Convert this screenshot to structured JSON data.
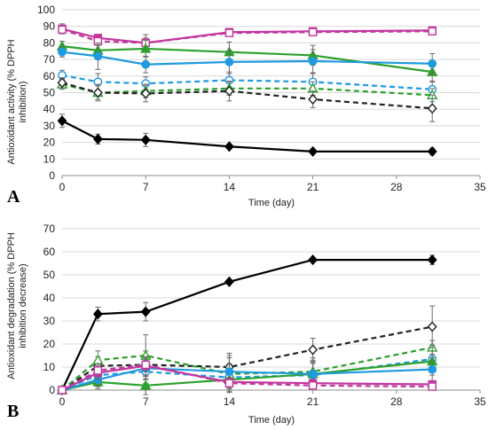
{
  "chart_data": [
    {
      "panel_label": "A",
      "type": "line",
      "xlabel": "Time (day)",
      "ylabel_lines": [
        "Antioxidant activity (% DPPH",
        "inhibition)"
      ],
      "xlim": [
        0,
        35
      ],
      "ylim": [
        0,
        100
      ],
      "x_ticks": [
        0,
        7,
        14,
        21,
        28,
        35
      ],
      "y_ticks": [
        0,
        10,
        20,
        30,
        40,
        50,
        60,
        70,
        80,
        90,
        100
      ],
      "grid": "horizontal",
      "series": [
        {
          "color": "#c2379e",
          "dash": "solid",
          "marker": "square",
          "filled": true,
          "x": [
            0,
            3,
            7,
            14,
            21,
            31
          ],
          "y": [
            88.5,
            83,
            80,
            86.5,
            87,
            87.5
          ],
          "err": [
            3,
            2,
            5,
            2,
            1,
            1
          ]
        },
        {
          "color": "#c2379e",
          "dash": "dashed",
          "marker": "square",
          "filled": false,
          "x": [
            0,
            3,
            7,
            14,
            21,
            31
          ],
          "y": [
            88,
            81,
            80,
            86,
            86.5,
            87
          ],
          "err": [
            2,
            2,
            3,
            1,
            1,
            1
          ]
        },
        {
          "color": "#2ca02c",
          "dash": "solid",
          "marker": "triangle",
          "filled": true,
          "x": [
            0,
            3,
            7,
            14,
            21,
            31
          ],
          "y": [
            78,
            75.5,
            76.5,
            74.5,
            72.5,
            62.5
          ],
          "err": [
            3,
            3,
            5,
            6,
            6,
            6
          ]
        },
        {
          "color": "#1f9ae0",
          "dash": "solid",
          "marker": "circle",
          "filled": true,
          "x": [
            0,
            3,
            7,
            14,
            21,
            31
          ],
          "y": [
            74.5,
            72,
            67,
            68.5,
            69,
            67.5
          ],
          "err": [
            3,
            8,
            5,
            7,
            7,
            6
          ]
        },
        {
          "color": "#1f9ae0",
          "dash": "dashed",
          "marker": "circle",
          "filled": false,
          "x": [
            0,
            3,
            7,
            14,
            21,
            31
          ],
          "y": [
            60.5,
            56.5,
            55.5,
            57.5,
            56.5,
            52
          ],
          "err": [
            3,
            5,
            4,
            5,
            5,
            5
          ]
        },
        {
          "color": "#2ca02c",
          "dash": "dashed",
          "marker": "triangle",
          "filled": false,
          "x": [
            0,
            3,
            7,
            14,
            21,
            31
          ],
          "y": [
            55,
            50,
            51,
            52.5,
            52.5,
            48.5
          ],
          "err": [
            3,
            4,
            4,
            4,
            4,
            4
          ]
        },
        {
          "color": "#222222",
          "dash": "dashed",
          "marker": "diamond",
          "filled": false,
          "x": [
            0,
            3,
            7,
            14,
            21,
            31
          ],
          "y": [
            56,
            50,
            49.5,
            51,
            46,
            40.5
          ],
          "err": [
            3,
            5,
            5,
            6,
            5,
            8
          ]
        },
        {
          "color": "#000000",
          "dash": "solid",
          "marker": "diamond",
          "filled": true,
          "x": [
            0,
            3,
            7,
            14,
            21,
            31
          ],
          "y": [
            33,
            22,
            21.5,
            17.5,
            14.5,
            14.5
          ],
          "err": [
            4,
            3,
            4,
            0,
            0,
            2
          ]
        }
      ]
    },
    {
      "panel_label": "B",
      "type": "line",
      "xlabel": "Time (day)",
      "ylabel_lines": [
        "Antioxidant degradation (% DPPH",
        "inhibition decrease)"
      ],
      "xlim": [
        0,
        35
      ],
      "ylim": [
        0,
        70
      ],
      "x_ticks": [
        0,
        7,
        14,
        21,
        28,
        35
      ],
      "y_ticks": [
        0,
        10,
        20,
        30,
        40,
        50,
        60,
        70
      ],
      "grid": "horizontal",
      "series": [
        {
          "color": "#000000",
          "dash": "solid",
          "marker": "diamond",
          "filled": true,
          "x": [
            0,
            3,
            7,
            14,
            21,
            31
          ],
          "y": [
            0,
            33,
            34,
            47,
            56.5,
            56.5
          ],
          "err": [
            0,
            3,
            4,
            0,
            0,
            2
          ]
        },
        {
          "color": "#222222",
          "dash": "dashed",
          "marker": "diamond",
          "filled": false,
          "x": [
            0,
            3,
            7,
            14,
            21,
            31
          ],
          "y": [
            0,
            10.5,
            11,
            10,
            17.5,
            27.5
          ],
          "err": [
            0,
            4,
            6,
            6,
            5,
            9
          ]
        },
        {
          "color": "#2ca02c",
          "dash": "dashed",
          "marker": "triangle",
          "filled": false,
          "x": [
            0,
            3,
            7,
            14,
            21,
            31
          ],
          "y": [
            0,
            13,
            15,
            7,
            8,
            18.5
          ],
          "err": [
            0,
            4,
            9,
            8,
            6,
            3
          ]
        },
        {
          "color": "#1f9ae0",
          "dash": "dashed",
          "marker": "circle",
          "filled": false,
          "x": [
            0,
            3,
            7,
            14,
            21,
            31
          ],
          "y": [
            0,
            6.5,
            8,
            5.5,
            6.5,
            13.5
          ],
          "err": [
            0,
            5,
            5,
            6,
            5,
            6
          ]
        },
        {
          "color": "#2ca02c",
          "dash": "solid",
          "marker": "triangle",
          "filled": true,
          "x": [
            0,
            3,
            7,
            14,
            21,
            31
          ],
          "y": [
            0,
            3.5,
            2,
            4.5,
            7,
            12.5
          ],
          "err": [
            0,
            2,
            4,
            4,
            5,
            6
          ]
        },
        {
          "color": "#1f9ae0",
          "dash": "solid",
          "marker": "circle",
          "filled": true,
          "x": [
            0,
            3,
            7,
            14,
            21,
            31
          ],
          "y": [
            0,
            4.5,
            9.5,
            8,
            7,
            9
          ],
          "err": [
            0,
            4,
            5,
            6,
            6,
            5
          ]
        },
        {
          "color": "#c2379e",
          "dash": "solid",
          "marker": "square",
          "filled": true,
          "x": [
            0,
            3,
            7,
            14,
            21,
            31
          ],
          "y": [
            0,
            7.5,
            10.5,
            3.5,
            3,
            2.5
          ],
          "err": [
            0,
            3,
            4,
            2,
            1,
            1
          ]
        },
        {
          "color": "#c2379e",
          "dash": "dashed",
          "marker": "square",
          "filled": false,
          "x": [
            0,
            3,
            7,
            14,
            21,
            31
          ],
          "y": [
            0,
            8.5,
            11,
            3,
            2,
            1.5
          ],
          "err": [
            0,
            3,
            3,
            2,
            1,
            1
          ]
        }
      ]
    }
  ]
}
